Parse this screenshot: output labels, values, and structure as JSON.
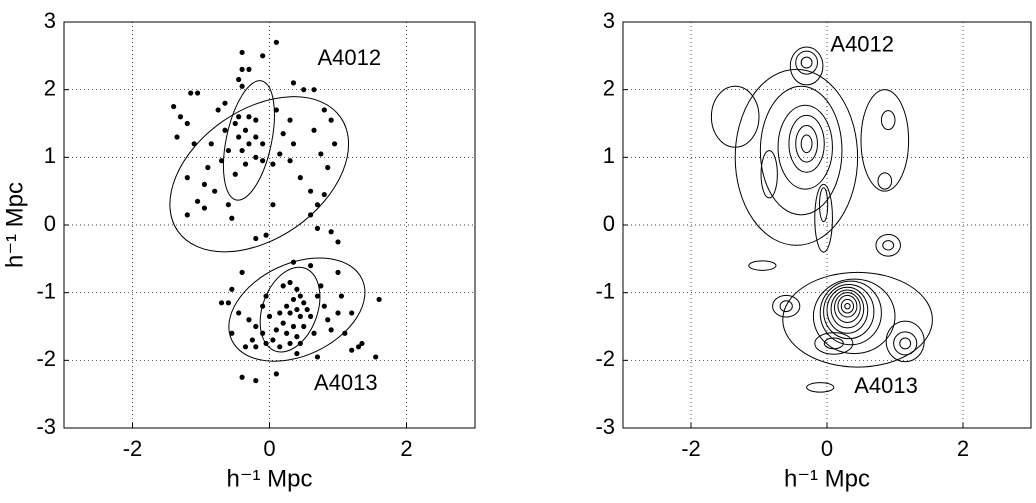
{
  "chart_data": [
    {
      "type": "scatter",
      "xlabel": "h⁻¹ Mpc",
      "ylabel": "h⁻¹ Mpc",
      "color": "#000000",
      "xlim": [
        -3,
        3
      ],
      "ylim": [
        -3,
        3
      ],
      "xticks": [
        -2,
        0,
        2
      ],
      "yticks": [
        -3,
        -2,
        -1,
        0,
        1,
        2,
        3
      ],
      "grid": true,
      "x": [
        0.1,
        -0.4,
        -0.1,
        -0.3,
        -0.4,
        -0.45,
        -0.4,
        -0.45,
        -0.5,
        -0.3,
        -0.2,
        -0.35,
        -0.2,
        -0.1,
        -0.3,
        -0.45,
        -0.4,
        -0.2,
        -0.1,
        -0.35,
        -0.5,
        -0.6,
        -0.7,
        -0.65,
        -0.75,
        -0.65,
        0.1,
        0.3,
        0.2,
        0.35,
        0.15,
        0.05,
        0.3,
        0.45,
        0.6,
        0.7,
        0.6,
        0.8,
        0.65,
        0.65,
        0.8,
        0.9,
        0.95,
        0.75,
        0.85,
        0.5,
        0.35,
        -1.4,
        -1.3,
        -1.35,
        -1.2,
        -1.15,
        -1.05,
        -1.1,
        -0.85,
        -0.9,
        -1.2,
        -0.95,
        -1.05,
        -0.95,
        -1.2,
        -0.8,
        -0.6,
        -0.55,
        0.05,
        0.7,
        -0.05,
        0.9,
        0.2,
        0.3,
        0.4,
        0.45,
        0.35,
        0.5,
        0.25,
        0.4,
        0.55,
        0.3,
        0.15,
        0.45,
        0.6,
        0.2,
        0.35,
        0.5,
        0.1,
        0.25,
        0.4,
        0.05,
        -0.05,
        0.15,
        0.3,
        0.45,
        -0.1,
        -0.05,
        0.0,
        -0.2,
        -0.1,
        0.7,
        0.75,
        0.8,
        0.85,
        0.65,
        0.9,
        1.0,
        1.05,
        1.1,
        1.2,
        1.3,
        1.35,
        1.55,
        1.6,
        1.2,
        1.0,
        1.0,
        0.35,
        0.6,
        -0.2,
        -0.4,
        -0.55,
        -0.6,
        -0.45,
        -0.3,
        -0.55,
        -0.7,
        -0.35,
        -0.2,
        -0.25,
        0.4,
        0.1,
        -0.2,
        -0.4,
        0.7
      ],
      "values": [
        2.7,
        2.55,
        2.5,
        2.3,
        2.3,
        2.15,
        2.05,
        1.6,
        1.5,
        1.6,
        1.55,
        1.4,
        1.3,
        1.2,
        1.2,
        1.3,
        1.1,
        1.0,
        0.95,
        0.9,
        0.75,
        1.1,
        0.95,
        1.4,
        1.7,
        1.8,
        1.7,
        1.55,
        1.35,
        1.2,
        1.05,
        0.9,
        0.95,
        0.7,
        0.5,
        0.3,
        0.15,
        0.45,
        1.4,
        2.0,
        1.7,
        1.55,
        1.2,
        1.05,
        0.85,
        2.0,
        2.1,
        1.75,
        1.6,
        1.3,
        1.5,
        1.95,
        1.95,
        1.2,
        1.2,
        0.85,
        0.7,
        0.6,
        0.35,
        0.25,
        0.15,
        0.5,
        0.3,
        0.1,
        0.3,
        -0.05,
        -0.15,
        -0.1,
        -0.9,
        -0.85,
        -0.95,
        -1.05,
        -1.1,
        -1.15,
        -1.2,
        -1.25,
        -1.25,
        -1.3,
        -1.3,
        -1.35,
        -1.35,
        -1.45,
        -1.5,
        -1.5,
        -1.55,
        -1.6,
        -1.65,
        -1.7,
        -1.75,
        -1.8,
        -1.75,
        -1.75,
        -1.2,
        -1.05,
        -1.35,
        -1.5,
        -1.6,
        -1.05,
        -0.9,
        -1.2,
        -1.4,
        -1.6,
        -1.55,
        -1.3,
        -1.05,
        -1.6,
        -1.85,
        -1.8,
        -1.75,
        -1.95,
        -1.1,
        -1.3,
        -0.7,
        -0.25,
        -0.55,
        -0.6,
        -0.2,
        -0.7,
        -0.95,
        -1.15,
        -1.3,
        -1.4,
        -1.6,
        -1.15,
        -1.8,
        -1.8,
        -1.7,
        -1.9,
        -2.2,
        -2.3,
        -2.25,
        -1.95
      ],
      "ellipses": [
        {
          "cx": -0.15,
          "cy": 0.75,
          "rx": 1.45,
          "ry": 0.95,
          "angle": 35
        },
        {
          "cx": -0.3,
          "cy": 1.25,
          "rx": 0.33,
          "ry": 0.9,
          "angle": -12
        },
        {
          "cx": 0.4,
          "cy": -1.25,
          "rx": 1.05,
          "ry": 0.68,
          "angle": 25
        },
        {
          "cx": 0.3,
          "cy": -1.25,
          "rx": 0.4,
          "ry": 0.65,
          "angle": -20
        }
      ],
      "annotations": [
        {
          "text": "A4012",
          "x": 0.7,
          "y": 2.45
        },
        {
          "text": "A4013",
          "x": 0.65,
          "y": -2.35
        }
      ]
    },
    {
      "type": "contour",
      "xlabel": "h⁻¹ Mpc",
      "xlim": [
        -3,
        3
      ],
      "ylim": [
        -3,
        3
      ],
      "xticks": [
        -2,
        0,
        2
      ],
      "yticks": [
        -3,
        -2,
        -1,
        0,
        1,
        2,
        3
      ],
      "grid": true,
      "contours": [
        {
          "cx": -0.3,
          "cy": 2.4,
          "rx": 0.08,
          "ry": 0.08
        },
        {
          "cx": -0.3,
          "cy": 2.4,
          "rx": 0.16,
          "ry": 0.17
        },
        {
          "cx": -0.3,
          "cy": 2.35,
          "rx": 0.24,
          "ry": 0.28
        },
        {
          "cx": -0.3,
          "cy": 1.2,
          "rx": 0.08,
          "ry": 0.13
        },
        {
          "cx": -0.3,
          "cy": 1.2,
          "rx": 0.16,
          "ry": 0.27
        },
        {
          "cx": -0.3,
          "cy": 1.2,
          "rx": 0.26,
          "ry": 0.42
        },
        {
          "cx": -0.32,
          "cy": 1.15,
          "rx": 0.4,
          "ry": 0.62
        },
        {
          "cx": -0.38,
          "cy": 1.1,
          "rx": 0.6,
          "ry": 0.95
        },
        {
          "cx": -0.45,
          "cy": 1.0,
          "rx": 0.9,
          "ry": 1.3
        },
        {
          "cx": -1.35,
          "cy": 1.6,
          "rx": 0.35,
          "ry": 0.45
        },
        {
          "cx": -0.85,
          "cy": 0.75,
          "rx": 0.12,
          "ry": 0.35
        },
        {
          "cx": 0.85,
          "cy": 1.25,
          "rx": 0.35,
          "ry": 0.75
        },
        {
          "cx": 0.9,
          "cy": 1.55,
          "rx": 0.1,
          "ry": 0.14
        },
        {
          "cx": 0.85,
          "cy": 0.65,
          "rx": 0.1,
          "ry": 0.12
        },
        {
          "cx": -0.05,
          "cy": 0.1,
          "rx": 0.13,
          "ry": 0.5
        },
        {
          "cx": -0.05,
          "cy": 0.3,
          "rx": 0.06,
          "ry": 0.25
        },
        {
          "cx": 0.9,
          "cy": -0.3,
          "rx": 0.18,
          "ry": 0.16
        },
        {
          "cx": 0.9,
          "cy": -0.3,
          "rx": 0.08,
          "ry": 0.07
        },
        {
          "cx": -0.95,
          "cy": -0.6,
          "rx": 0.2,
          "ry": 0.07
        },
        {
          "cx": 0.3,
          "cy": -1.2,
          "rx": 0.04,
          "ry": 0.04
        },
        {
          "cx": 0.3,
          "cy": -1.2,
          "rx": 0.09,
          "ry": 0.1
        },
        {
          "cx": 0.3,
          "cy": -1.2,
          "rx": 0.14,
          "ry": 0.16
        },
        {
          "cx": 0.3,
          "cy": -1.22,
          "rx": 0.19,
          "ry": 0.22
        },
        {
          "cx": 0.3,
          "cy": -1.24,
          "rx": 0.24,
          "ry": 0.28
        },
        {
          "cx": 0.3,
          "cy": -1.26,
          "rx": 0.3,
          "ry": 0.34
        },
        {
          "cx": 0.32,
          "cy": -1.28,
          "rx": 0.37,
          "ry": 0.4
        },
        {
          "cx": 0.35,
          "cy": -1.3,
          "rx": 0.45,
          "ry": 0.47
        },
        {
          "cx": 0.4,
          "cy": -1.35,
          "rx": 0.6,
          "ry": 0.55
        },
        {
          "cx": 0.45,
          "cy": -1.4,
          "rx": 1.1,
          "ry": 0.7
        },
        {
          "cx": -0.6,
          "cy": -1.2,
          "rx": 0.2,
          "ry": 0.16
        },
        {
          "cx": -0.6,
          "cy": -1.2,
          "rx": 0.09,
          "ry": 0.08
        },
        {
          "cx": 1.15,
          "cy": -1.75,
          "rx": 0.08,
          "ry": 0.08
        },
        {
          "cx": 1.15,
          "cy": -1.75,
          "rx": 0.17,
          "ry": 0.17
        },
        {
          "cx": 1.15,
          "cy": -1.72,
          "rx": 0.28,
          "ry": 0.3
        },
        {
          "cx": 0.1,
          "cy": -1.75,
          "rx": 0.14,
          "ry": 0.08
        },
        {
          "cx": 0.1,
          "cy": -1.75,
          "rx": 0.28,
          "ry": 0.16
        },
        {
          "cx": -0.1,
          "cy": -2.4,
          "rx": 0.2,
          "ry": 0.07
        }
      ],
      "annotations": [
        {
          "text": "A4012",
          "x": 0.05,
          "y": 2.65
        },
        {
          "text": "A4013",
          "x": 0.4,
          "y": -2.4
        }
      ]
    }
  ]
}
